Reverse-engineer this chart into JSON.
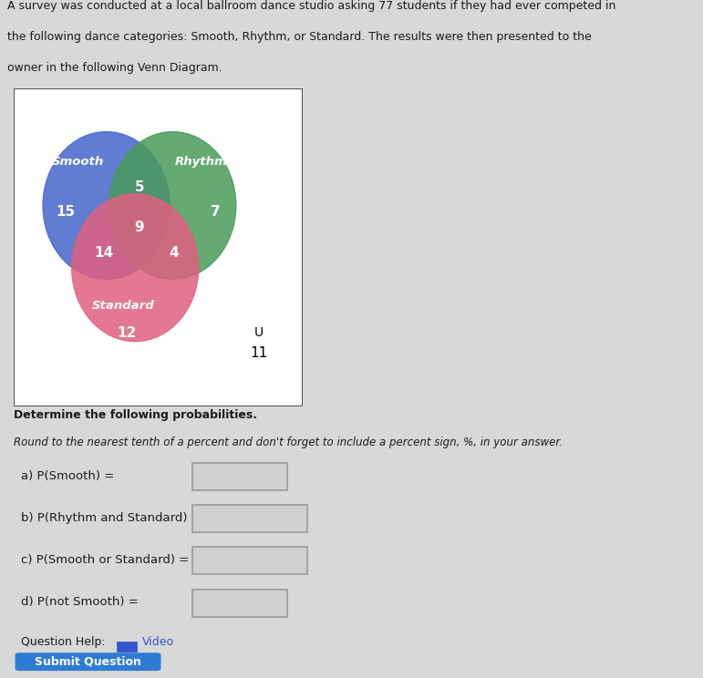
{
  "title_text1": "A survey was conducted at a local ballroom dance studio asking 77 students if they had ever competed in",
  "title_text2": "the following dance categories: Smooth, Rhythm, or Standard. The results were then presented to the",
  "title_text3": "owner in the following Venn Diagram.",
  "bg_color": "#d8d8d8",
  "venn_bg": "#ffffff",
  "smooth_color": "#4466cc",
  "rhythm_color": "#4a9a5a",
  "standard_color": "#e06080",
  "smooth_label": "Smooth",
  "rhythm_label": "Rhythm",
  "standard_label": "Standard",
  "smooth_only": "15",
  "rhythm_only": "7",
  "standard_only": "12",
  "smooth_rhythm": "5",
  "smooth_standard": "14",
  "rhythm_standard": "4",
  "all_three": "9",
  "outside": "11",
  "U_label": "U",
  "det_text": "Determine the following probabilities.",
  "round_text": "Round to the nearest tenth of a percent and don't forget to include a percent sign, %, in your answer.",
  "q_a": "a) P(Smooth) =",
  "q_b": "b) P(Rhythm and Standard) =",
  "q_c": "c) P(Smooth or Standard) =",
  "q_d": "d) P(not Smooth) =",
  "q_help": "Question Help:",
  "video_text": "Video",
  "submit_text": "Submit Question",
  "text_color": "#1a1a1a",
  "input_bg": "#d0d0d0",
  "input_border": "#aaaaaa"
}
